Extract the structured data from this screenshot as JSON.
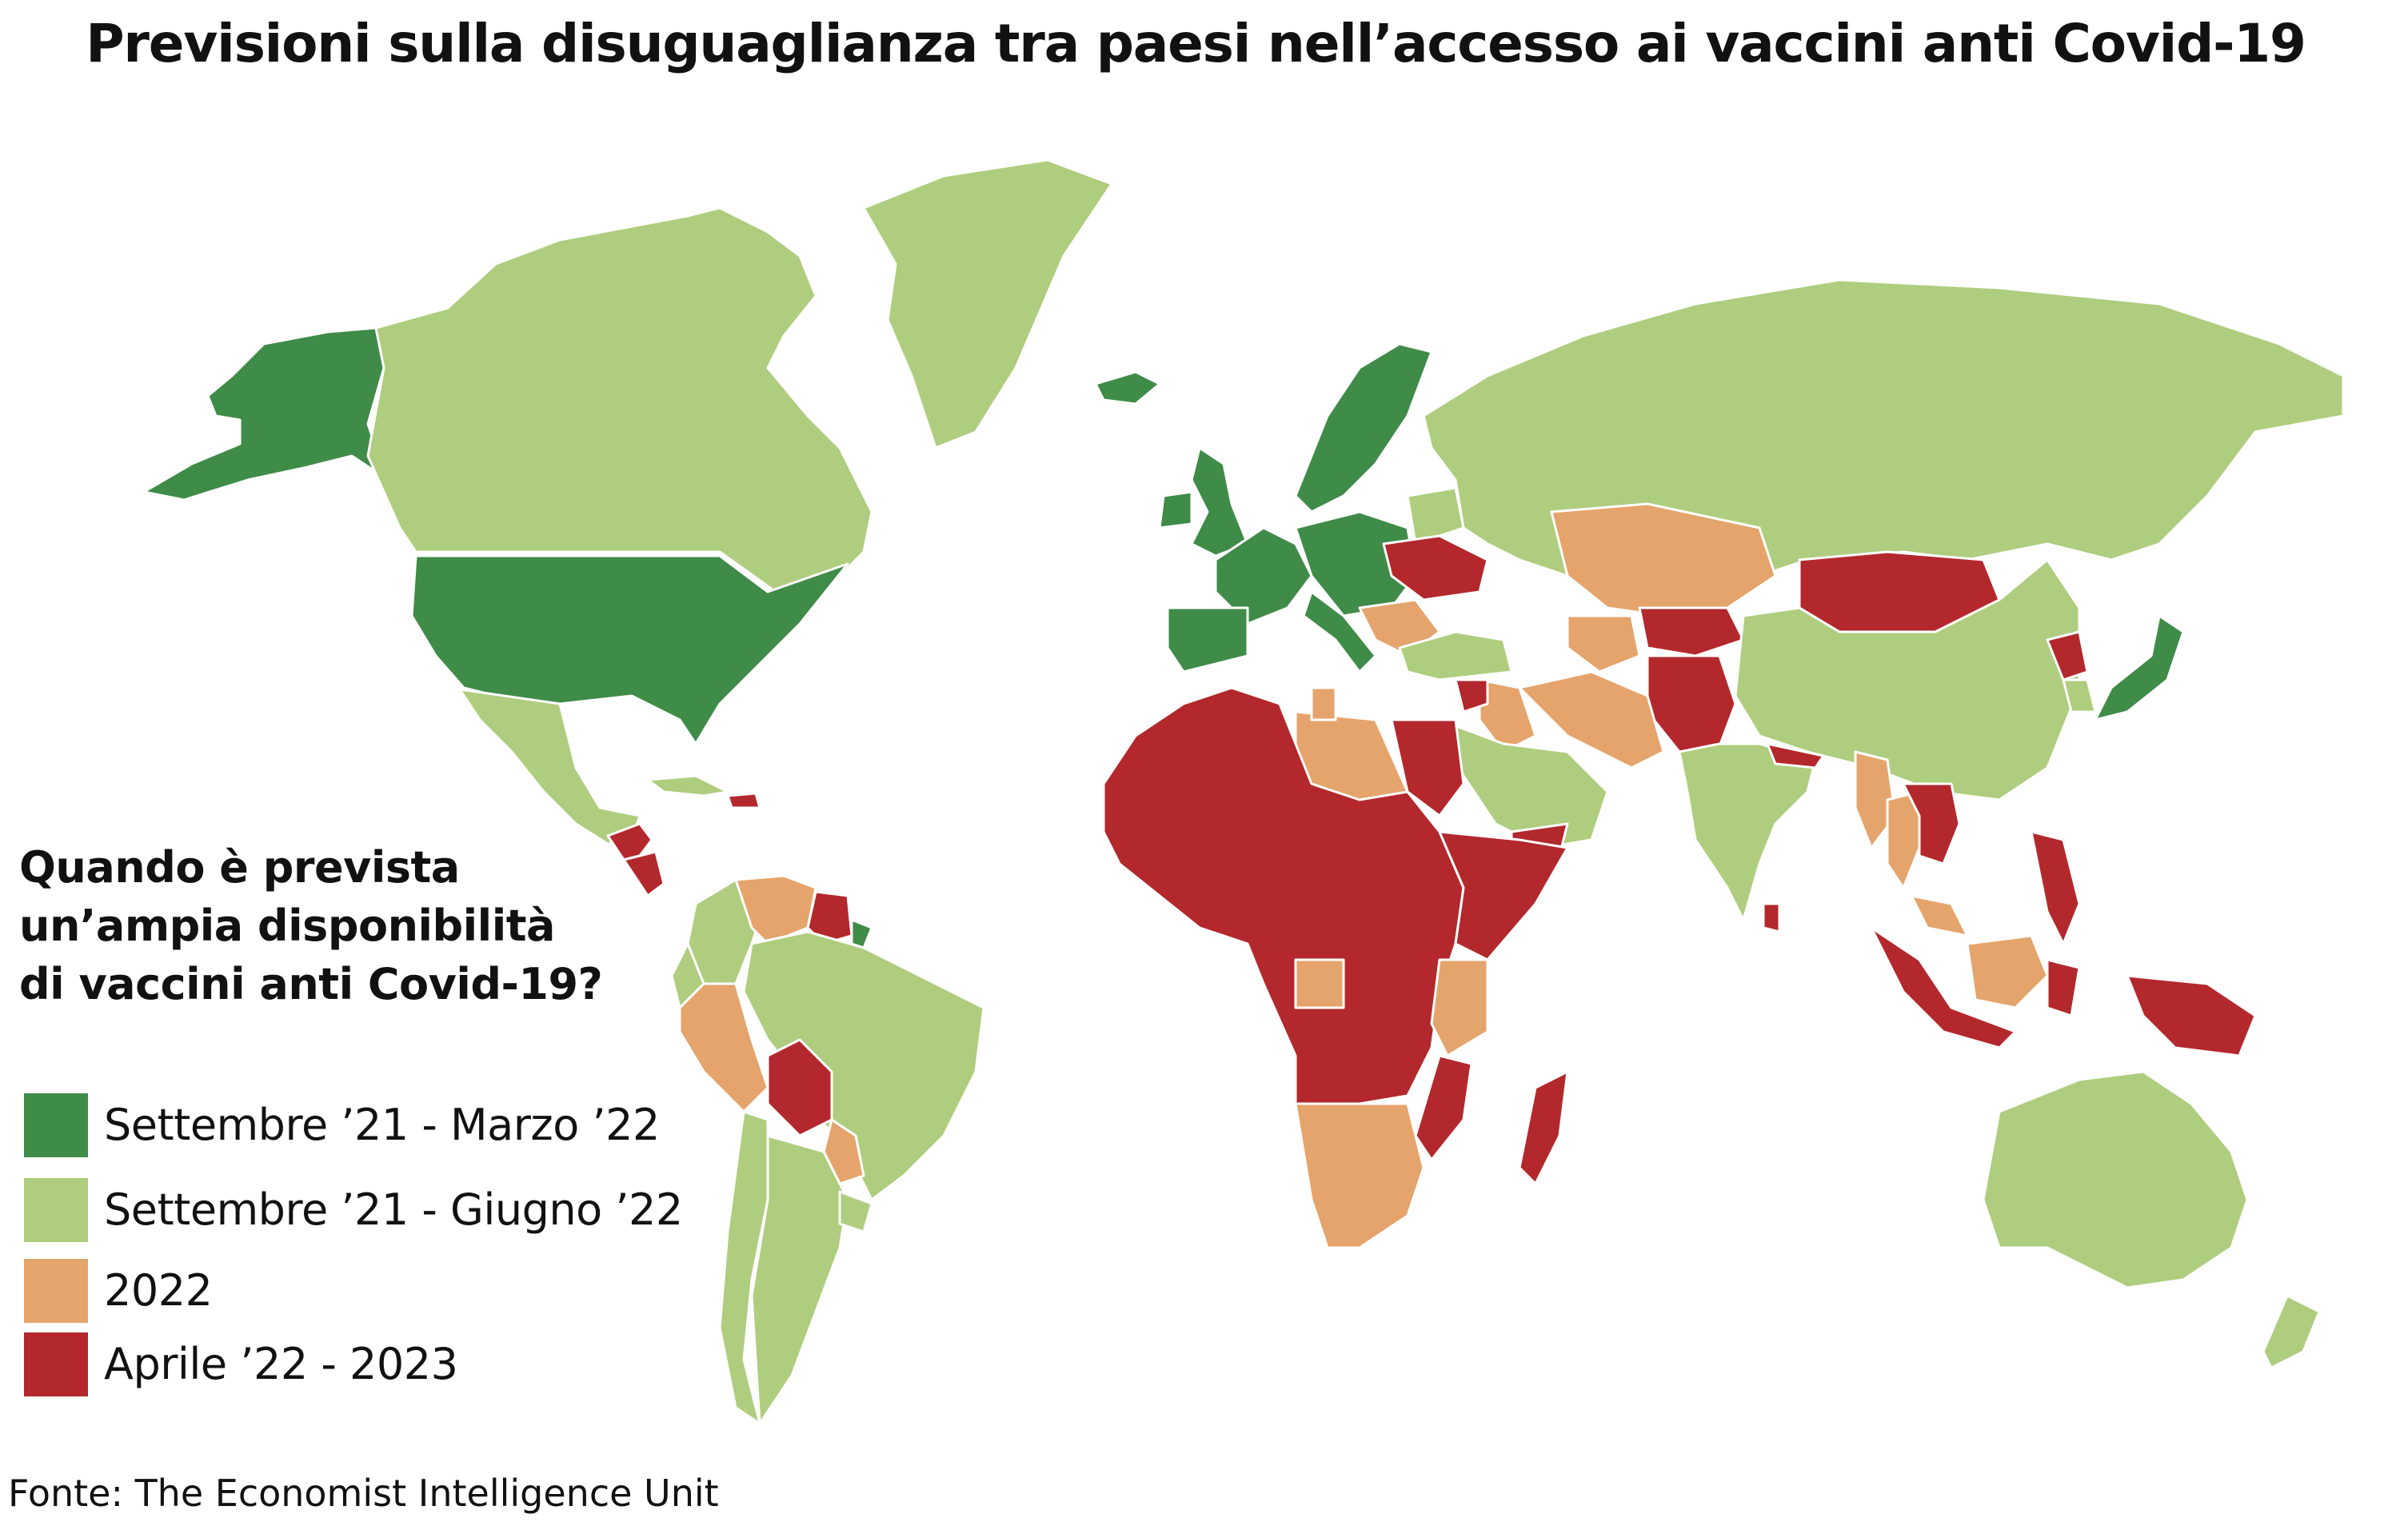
{
  "title": "Previsioni sulla disuguaglianza tra paesi nell’accesso ai vaccini anti Covid-19",
  "legend": {
    "question_lines": [
      "Quando è prevista",
      "un’ampia disponibilità",
      "di vaccini anti Covid-19?"
    ],
    "items": [
      {
        "label": "Settembre ’21 - Marzo ’22",
        "color": "#3f8b48"
      },
      {
        "label": "Settembre ’21 - Giugno ’22",
        "color": "#afcd7e"
      },
      {
        "label": "2022",
        "color": "#e5a46c"
      },
      {
        "label": "Aprile ’22 - 2023",
        "color": "#b3282c"
      }
    ]
  },
  "source": "Fonte: The Economist Intelligence Unit",
  "colors": {
    "early": "#3f8b48",
    "mid": "#afcd7e",
    "year2022": "#e5a46c",
    "late": "#b3282c",
    "background": "#ffffff",
    "border": "#ffffff"
  },
  "regions": [
    {
      "name": "Alaska",
      "category": "early"
    },
    {
      "name": "Canada",
      "category": "mid"
    },
    {
      "name": "Groenlandia",
      "category": "mid"
    },
    {
      "name": "Stati Uniti",
      "category": "early"
    },
    {
      "name": "Messico",
      "category": "mid"
    },
    {
      "name": "Guatemala / Honduras",
      "category": "late"
    },
    {
      "name": "Nicaragua",
      "category": "late"
    },
    {
      "name": "Cuba",
      "category": "mid"
    },
    {
      "name": "Haiti",
      "category": "late"
    },
    {
      "name": "Colombia",
      "category": "mid"
    },
    {
      "name": "Venezuela",
      "category": "year2022"
    },
    {
      "name": "Guyana / Suriname",
      "category": "late"
    },
    {
      "name": "Guyana francese",
      "category": "early"
    },
    {
      "name": "Ecuador",
      "category": "mid"
    },
    {
      "name": "Perù",
      "category": "year2022"
    },
    {
      "name": "Brasile",
      "category": "mid"
    },
    {
      "name": "Bolivia",
      "category": "late"
    },
    {
      "name": "Paraguay",
      "category": "year2022"
    },
    {
      "name": "Cile",
      "category": "mid"
    },
    {
      "name": "Argentina",
      "category": "mid"
    },
    {
      "name": "Uruguay",
      "category": "mid"
    },
    {
      "name": "Islanda",
      "category": "early"
    },
    {
      "name": "Norvegia / Svezia / Finlandia",
      "category": "early"
    },
    {
      "name": "Regno Unito",
      "category": "early"
    },
    {
      "name": "Irlanda",
      "category": "early"
    },
    {
      "name": "Europa occidentale",
      "category": "early"
    },
    {
      "name": "Penisola iberica",
      "category": "early"
    },
    {
      "name": "Italia",
      "category": "early"
    },
    {
      "name": "Europa centrale",
      "category": "early"
    },
    {
      "name": "Bielorussia",
      "category": "mid"
    },
    {
      "name": "Ucraina",
      "category": "late"
    },
    {
      "name": "Balcani",
      "category": "year2022"
    },
    {
      "name": "Russia",
      "category": "mid"
    },
    {
      "name": "Turchia",
      "category": "mid"
    },
    {
      "name": "Kazakistan",
      "category": "year2022"
    },
    {
      "name": "Uzbekistan / Turkmenistan",
      "category": "year2022"
    },
    {
      "name": "Tagikistan / Kirghizistan",
      "category": "late"
    },
    {
      "name": "Afghanistan / Pakistan",
      "category": "late"
    },
    {
      "name": "Mongolia",
      "category": "late"
    },
    {
      "name": "Cina",
      "category": "mid"
    },
    {
      "name": "Corea del Nord",
      "category": "late"
    },
    {
      "name": "Corea del Sud",
      "category": "mid"
    },
    {
      "name": "Giappone",
      "category": "early"
    },
    {
      "name": "Iran",
      "category": "year2022"
    },
    {
      "name": "Iraq",
      "category": "year2022"
    },
    {
      "name": "Siria",
      "category": "late"
    },
    {
      "name": "Penisola arabica",
      "category": "mid"
    },
    {
      "name": "Yemen",
      "category": "late"
    },
    {
      "name": "India",
      "category": "mid"
    },
    {
      "name": "Nepal",
      "category": "late"
    },
    {
      "name": "Sri Lanka",
      "category": "late"
    },
    {
      "name": "Myanmar",
      "category": "year2022"
    },
    {
      "name": "Thailandia",
      "category": "year2022"
    },
    {
      "name": "Vietnam / Laos / Cambogia",
      "category": "late"
    },
    {
      "name": "Filippine",
      "category": "late"
    },
    {
      "name": "Malesia",
      "category": "year2022"
    },
    {
      "name": "Sumatra / Giava",
      "category": "late"
    },
    {
      "name": "Borneo (Kalimantan)",
      "category": "year2022"
    },
    {
      "name": "Sulawesi",
      "category": "late"
    },
    {
      "name": "Nuova Guinea",
      "category": "late"
    },
    {
      "name": "Australia",
      "category": "mid"
    },
    {
      "name": "Nuova Zelanda",
      "category": "mid"
    },
    {
      "name": "Africa occidentale e centrale",
      "category": "late"
    },
    {
      "name": "Libia",
      "category": "year2022"
    },
    {
      "name": "Egitto",
      "category": "late"
    },
    {
      "name": "Tunisia",
      "category": "year2022"
    },
    {
      "name": "Corno d'Africa",
      "category": "late"
    },
    {
      "name": "Gabon / Congo",
      "category": "year2022"
    },
    {
      "name": "Kenya / Tanzania",
      "category": "year2022"
    },
    {
      "name": "Africa australe",
      "category": "year2022"
    },
    {
      "name": "Mozambico",
      "category": "late"
    },
    {
      "name": "Madagascar",
      "category": "late"
    }
  ]
}
